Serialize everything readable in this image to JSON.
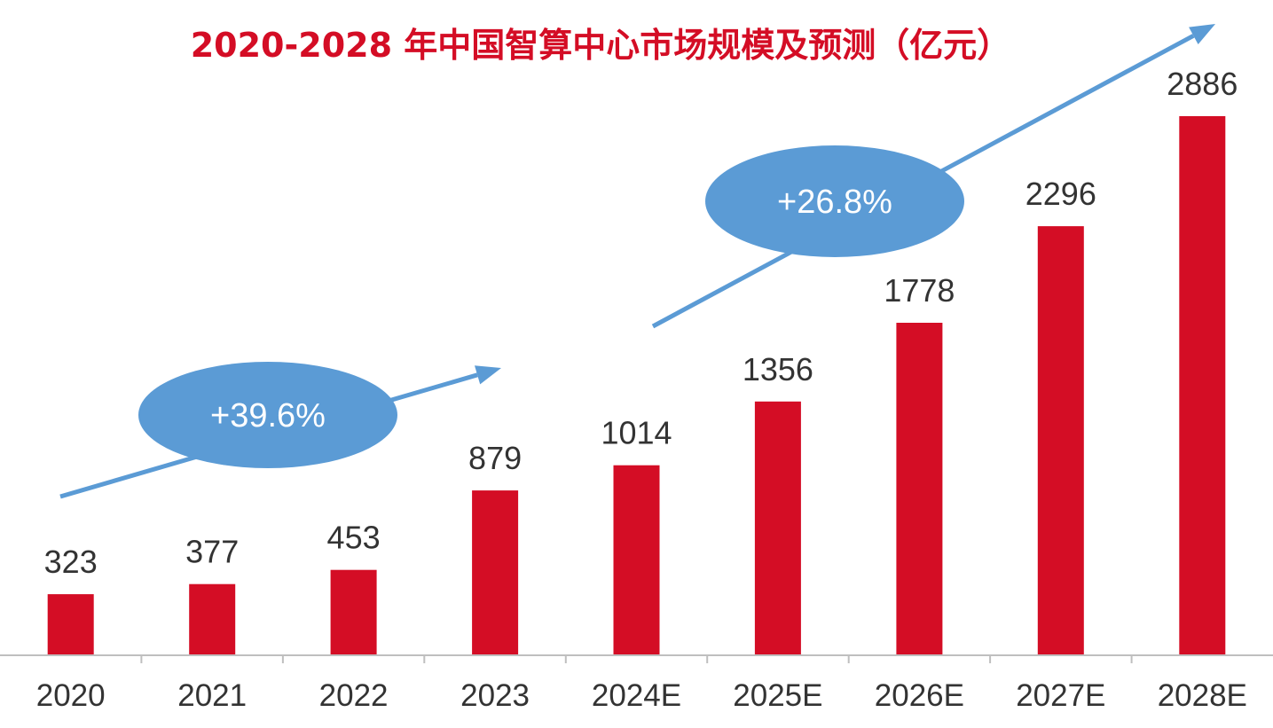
{
  "chart_data": {
    "type": "bar",
    "title": "2020-2028 年中国智算中心市场规模及预测（亿元）",
    "categories": [
      "2020",
      "2021",
      "2022",
      "2023",
      "2024E",
      "2025E",
      "2026E",
      "2027E",
      "2028E"
    ],
    "values": [
      323,
      377,
      453,
      879,
      1014,
      1356,
      1778,
      2296,
      2886
    ],
    "xlabel": "",
    "ylabel": "",
    "ylim": [
      0,
      3300
    ],
    "grid": false,
    "legend": "none",
    "annotations": [
      {
        "text": "+39.6%",
        "from_category": "2020",
        "to_category": "2023"
      },
      {
        "text": "+26.8%",
        "from_category": "2024E",
        "to_category": "2028E"
      }
    ],
    "colors": {
      "bar": "#D40D25",
      "title": "#D40D25",
      "arrow": "#5B9BD5",
      "ellipse": "#5B9BD5",
      "ellipse_text": "#FFFFFF",
      "label_text": "#333333",
      "axis": "#BFBFBF"
    }
  }
}
